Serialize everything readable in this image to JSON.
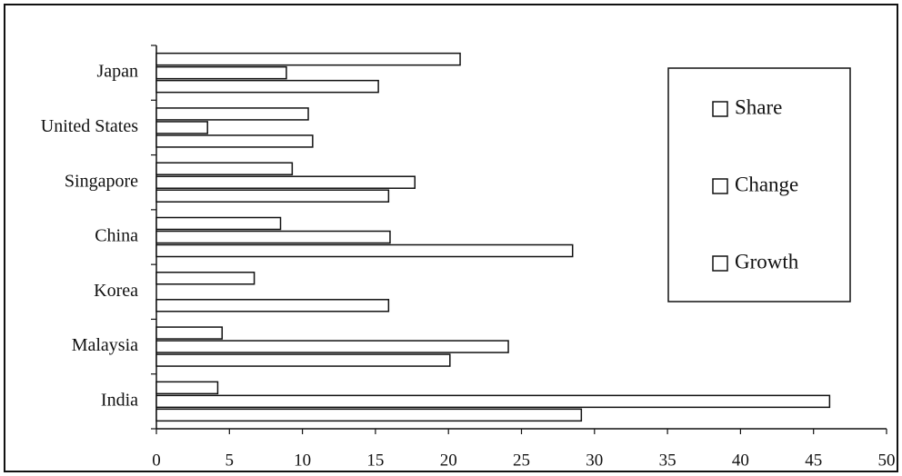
{
  "chart_data": {
    "type": "bar",
    "orientation": "horizontal",
    "categories": [
      "Japan",
      "United States",
      "Singapore",
      "China",
      "Korea",
      "Malaysia",
      "India"
    ],
    "series": [
      {
        "name": "Share",
        "color": "#ffffff",
        "values": [
          20.8,
          10.4,
          9.3,
          8.5,
          6.7,
          4.5,
          4.2
        ]
      },
      {
        "name": "Change",
        "color": "#ffffff",
        "values": [
          8.9,
          3.5,
          17.7,
          16.0,
          0,
          24.1,
          46.1
        ]
      },
      {
        "name": "Growth",
        "color": "#ffffff",
        "values": [
          15.2,
          10.7,
          15.9,
          28.5,
          15.9,
          20.1,
          29.1
        ]
      }
    ],
    "xlim": [
      0,
      50
    ],
    "xticks": [
      0,
      5,
      10,
      15,
      20,
      25,
      30,
      35,
      40,
      45,
      50
    ],
    "grid": false,
    "legend_position": "upper right"
  }
}
